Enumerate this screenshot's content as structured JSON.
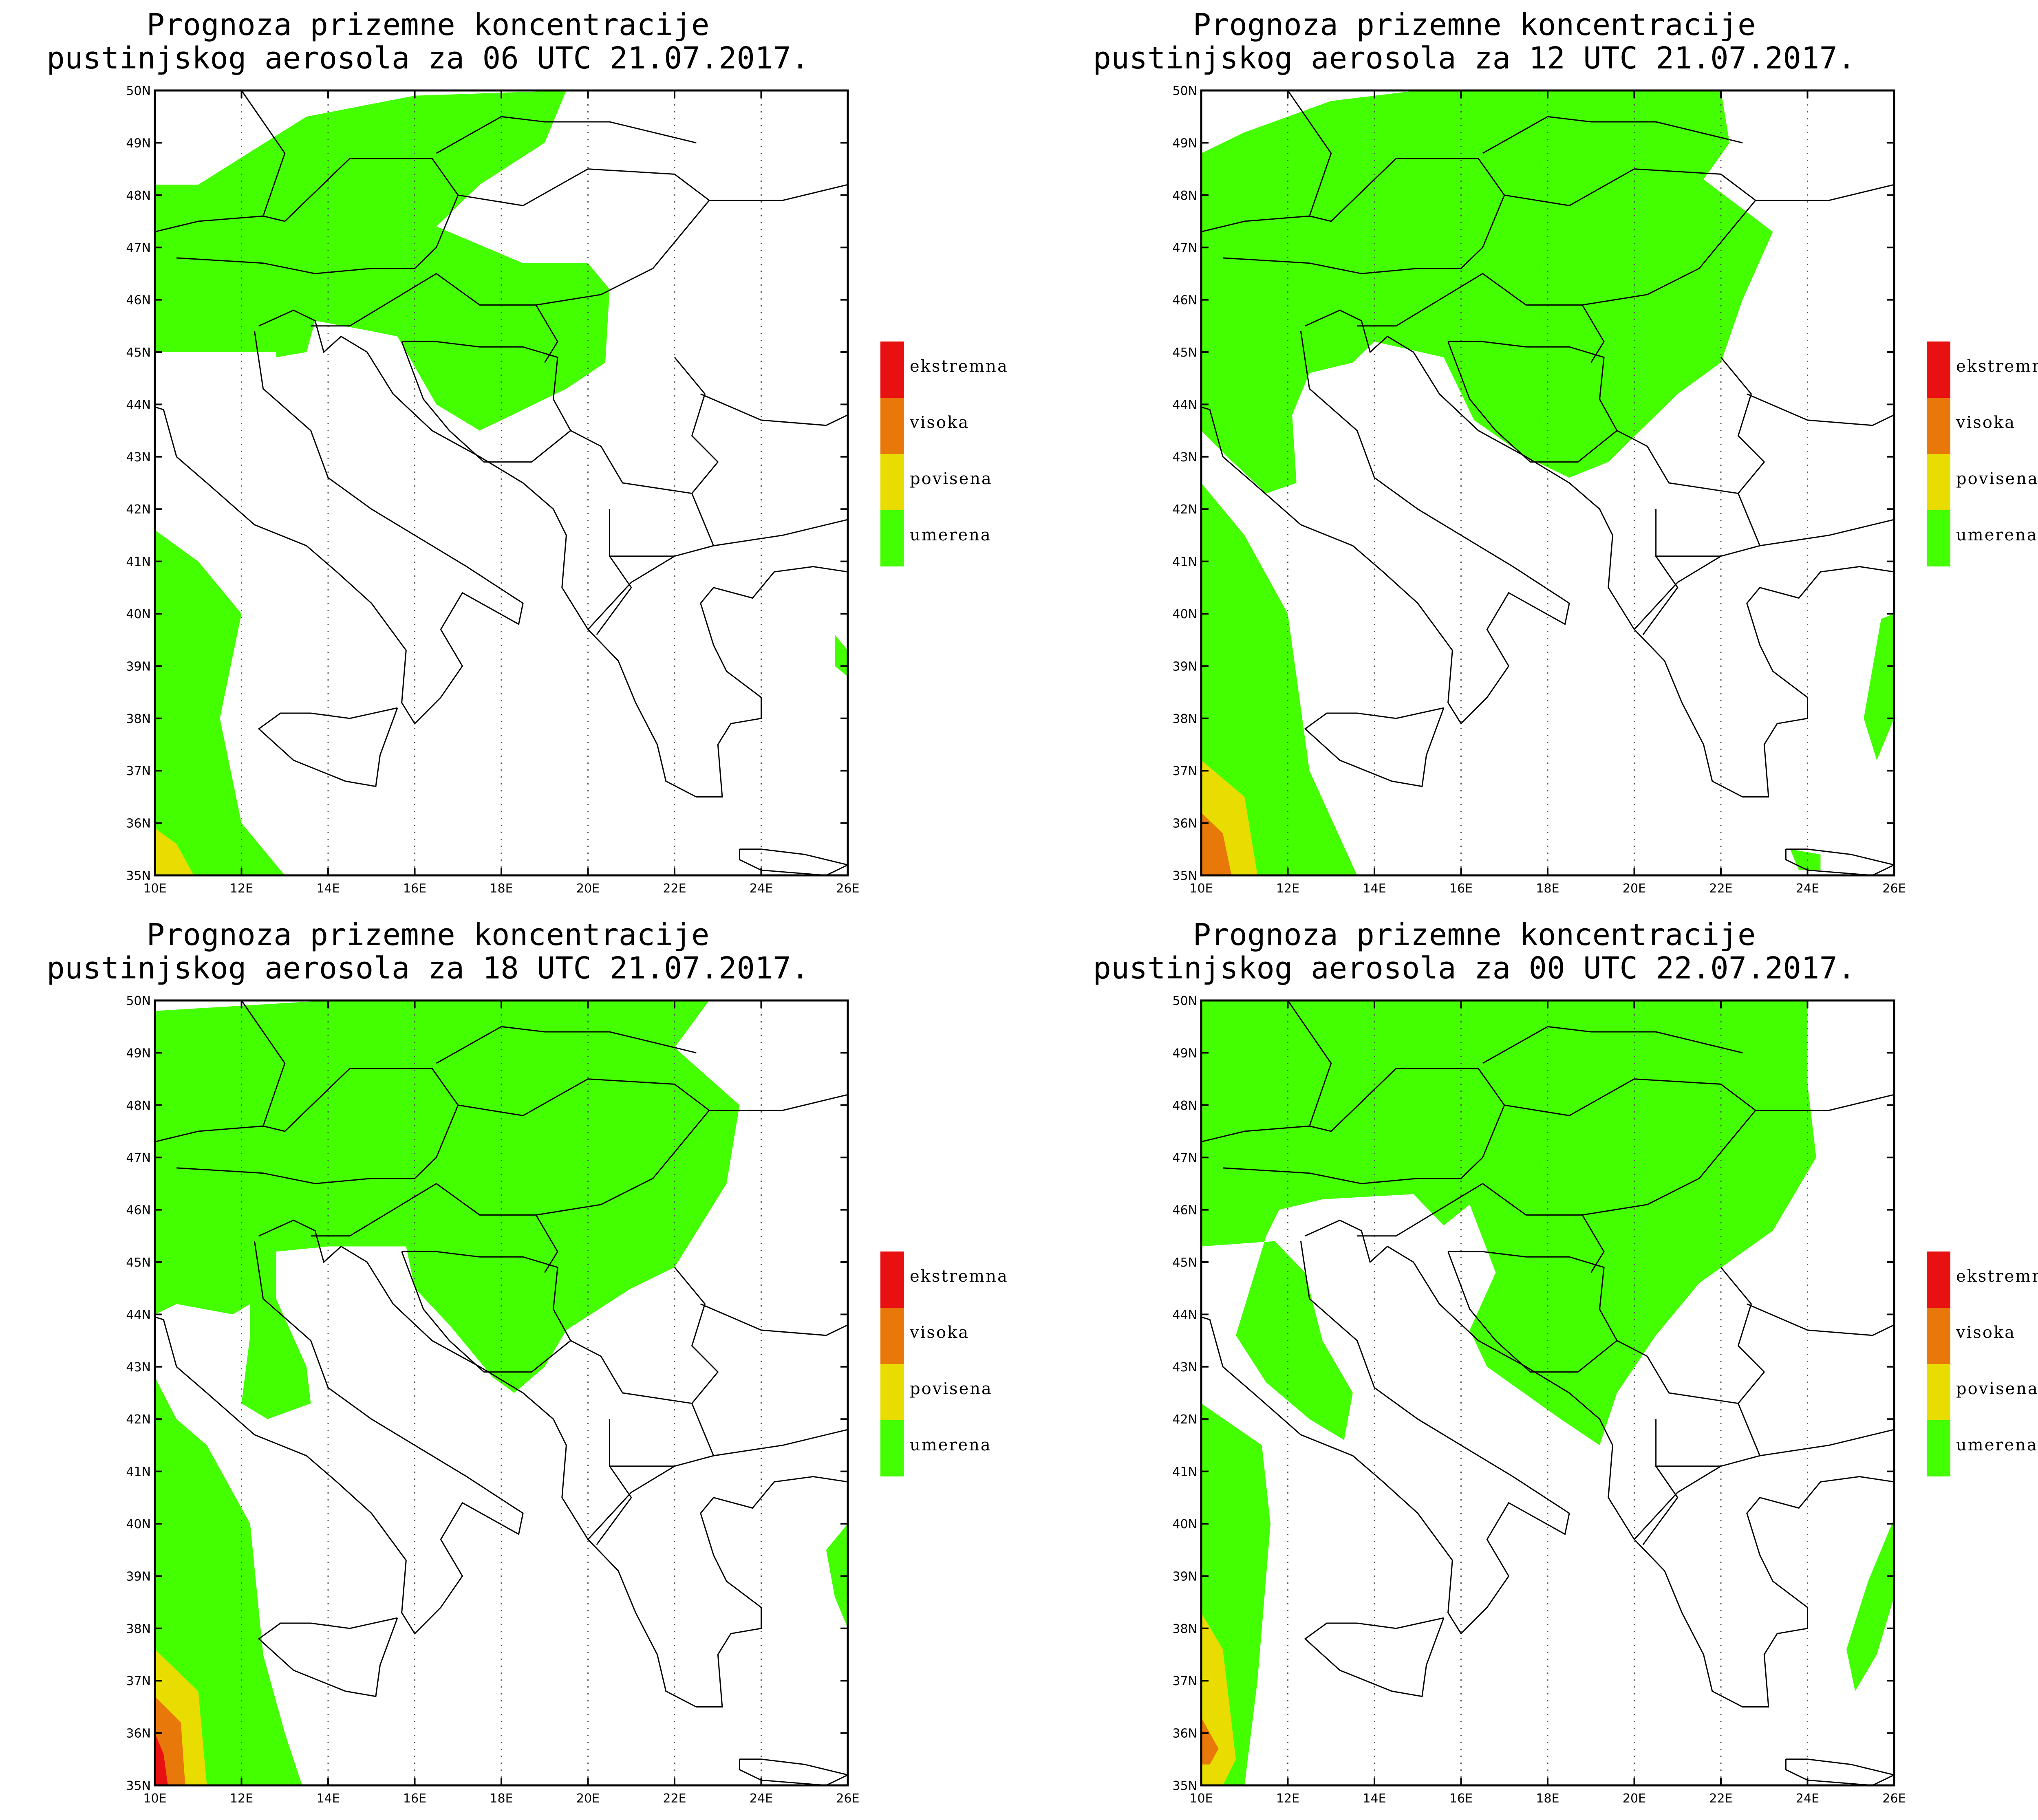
{
  "panels": [
    {
      "title_line1": "Prognoza prizemne koncentracije",
      "title_line2": "pustinjskog aerosola za 06 UTC 21.07.2017."
    },
    {
      "title_line1": "Prognoza prizemne koncentracije",
      "title_line2": "pustinjskog aerosola za 12 UTC 21.07.2017."
    },
    {
      "title_line1": "Prognoza prizemne koncentracije",
      "title_line2": "pustinjskog aerosola za 18 UTC 21.07.2017."
    },
    {
      "title_line1": "Prognoza prizemne koncentracije",
      "title_line2": "pustinjskog aerosola za 00 UTC 22.07.2017."
    }
  ],
  "legend": [
    {
      "label": "ekstremna",
      "color": "#e81010"
    },
    {
      "label": "visoka",
      "color": "#e8780a"
    },
    {
      "label": "povisena",
      "color": "#e8dc00"
    },
    {
      "label": "umerena",
      "color": "#44ff00"
    }
  ],
  "axes": {
    "lat_labels": [
      "50N",
      "49N",
      "48N",
      "47N",
      "46N",
      "45N",
      "44N",
      "43N",
      "42N",
      "41N",
      "40N",
      "39N",
      "38N",
      "37N",
      "36N",
      "35N"
    ],
    "lon_labels": [
      "10E",
      "12E",
      "14E",
      "16E",
      "18E",
      "20E",
      "22E",
      "24E",
      "26E"
    ]
  }
}
